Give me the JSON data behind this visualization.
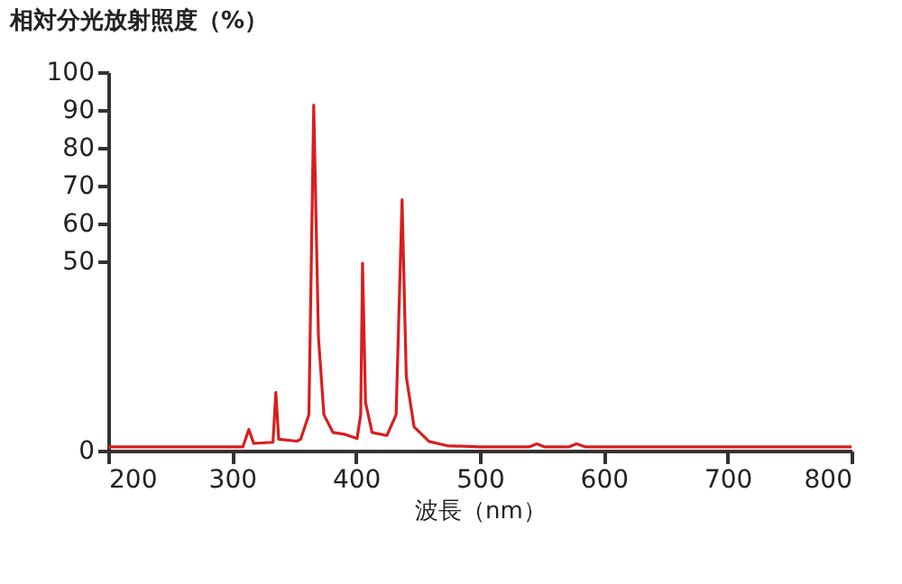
{
  "chart_data": {
    "type": "line",
    "ylabel": "相対分光放射照度（%）",
    "xlabel": "波長（nm）",
    "xlim": [
      200,
      800
    ],
    "xticks": [
      200,
      300,
      400,
      500,
      600,
      700,
      800
    ],
    "ylim": [
      0,
      100
    ],
    "yticks": [
      0,
      50,
      60,
      70,
      80,
      90,
      100
    ],
    "grid": false,
    "legend": false,
    "series": [
      {
        "color": "#d81e1e",
        "x": [
          200,
          250,
          300,
          308.7,
          313.5,
          317.4,
          333,
          335.3,
          337.6,
          352.4,
          355.3,
          362,
          365.9,
          369.7,
          374.1,
          381.4,
          391,
          400.9,
          403.8,
          405.3,
          407.7,
          413,
          425,
          432.4,
          437.2,
          440.6,
          446.9,
          459,
          473.6,
          500,
          540,
          546,
          552,
          572,
          578,
          585,
          650,
          700,
          800
        ],
        "values": [
          1,
          1,
          1,
          1,
          5.6,
          1.9,
          2.2,
          15.4,
          3,
          2.5,
          3,
          9.5,
          91.3,
          30,
          9.5,
          4.8,
          4.3,
          3.2,
          9.5,
          49.5,
          12.7,
          4.8,
          4,
          9.5,
          66.3,
          19.5,
          6.3,
          2.4,
          1.3,
          1,
          1,
          1.8,
          1,
          1,
          1.8,
          1,
          1,
          1,
          1
        ]
      }
    ]
  }
}
